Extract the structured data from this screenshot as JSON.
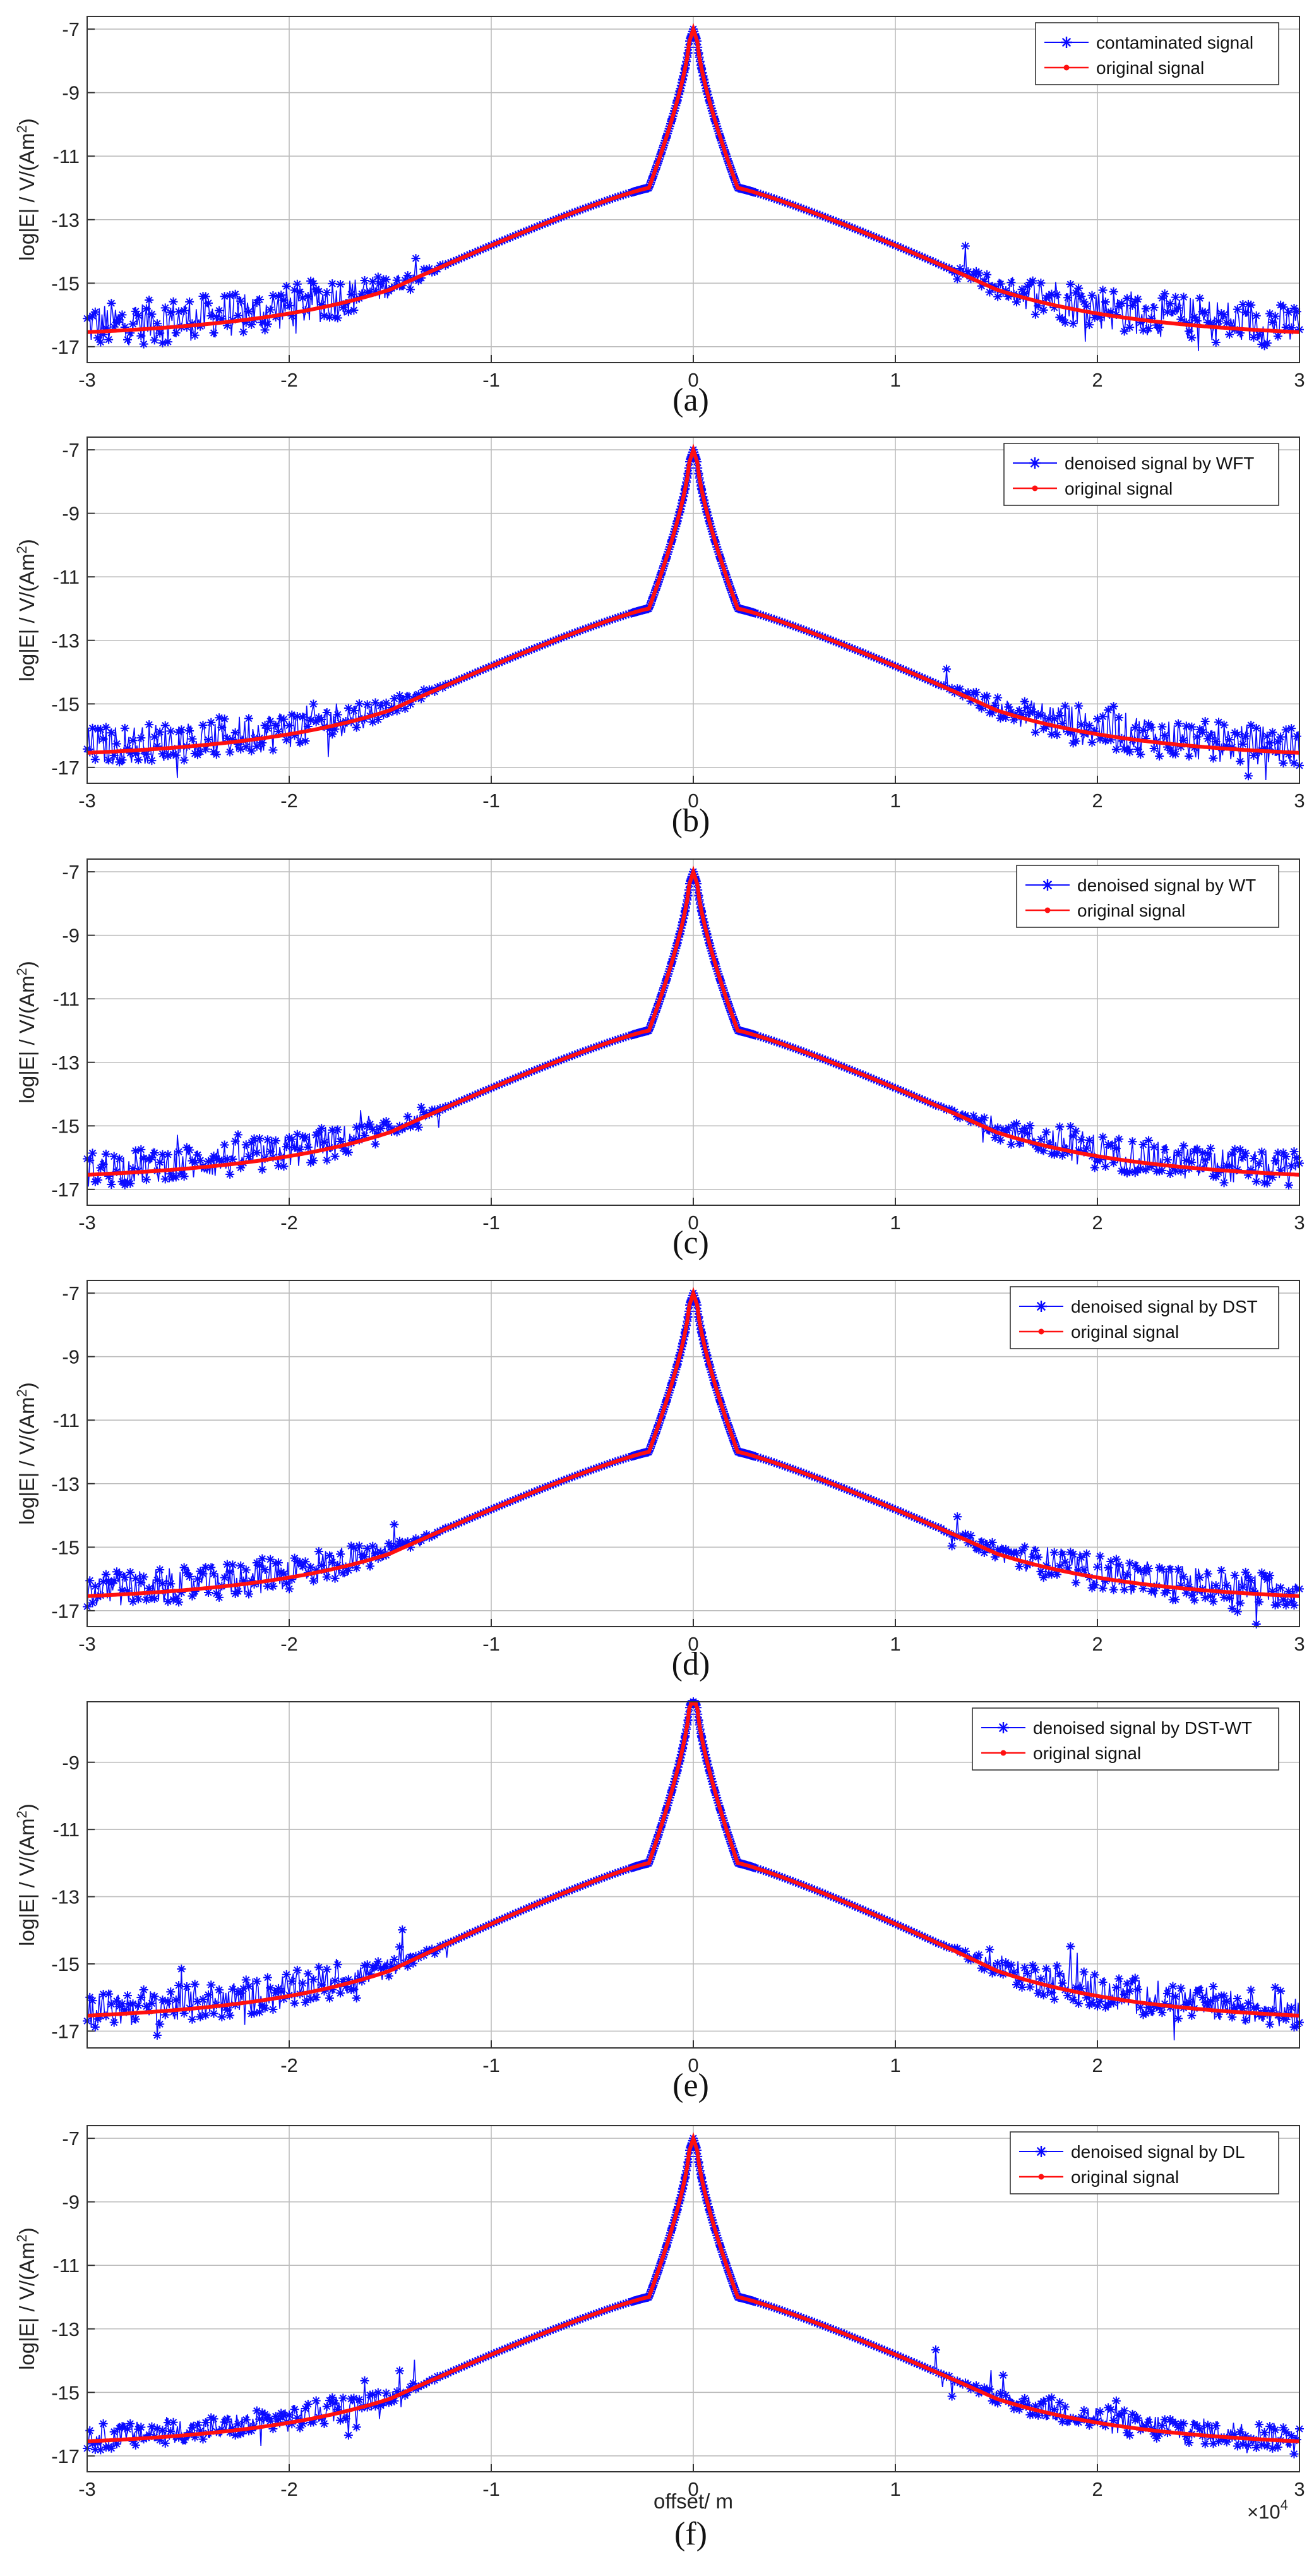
{
  "colors": {
    "contaminated": "#0a0aff",
    "original": "#ff1010",
    "grid": "#bdbdbd",
    "axis": "#333333"
  },
  "x_label": "offset/ m",
  "x_exponent_label": "×10",
  "x_exponent_power": "4",
  "y_label": "log|E| / V/(Am",
  "y_label_power": "2",
  "y_label_close": ")",
  "chart_data": [
    {
      "type": "line",
      "panel": "(a)",
      "caption": "(a)",
      "xlim": [
        -3,
        3
      ],
      "ylim": [
        -17.5,
        -6.6
      ],
      "x_ticks": [
        "-3",
        "-2",
        "-1",
        "0",
        "1",
        "2",
        "3"
      ],
      "y_ticks": [
        "-7",
        "-9",
        "-11",
        "-13",
        "-15",
        "-17"
      ],
      "legend": [
        "contaminated signal",
        "original signal"
      ],
      "noise": 1.0
    },
    {
      "type": "line",
      "panel": "(b)",
      "caption": "(b)",
      "xlim": [
        -3,
        3
      ],
      "ylim": [
        -17.5,
        -6.6
      ],
      "x_ticks": [
        "-3",
        "-2",
        "-1",
        "0",
        "1",
        "2",
        "3"
      ],
      "y_ticks": [
        "-7",
        "-9",
        "-11",
        "-13",
        "-15",
        "-17"
      ],
      "legend": [
        "denoised signal by WFT",
        "original signal"
      ],
      "noise": 0.9
    },
    {
      "type": "line",
      "panel": "(c)",
      "caption": "(c)",
      "xlim": [
        -3,
        3
      ],
      "ylim": [
        -17.5,
        -6.6
      ],
      "x_ticks": [
        "-3",
        "-2",
        "-1",
        "0",
        "1",
        "2",
        "3"
      ],
      "y_ticks": [
        "-7",
        "-9",
        "-11",
        "-13",
        "-15",
        "-17"
      ],
      "legend": [
        "denoised signal by WT",
        "original signal"
      ],
      "noise": 0.8
    },
    {
      "type": "line",
      "panel": "(d)",
      "caption": "(d)",
      "xlim": [
        -3,
        3
      ],
      "ylim": [
        -17.5,
        -6.6
      ],
      "x_ticks": [
        "-3",
        "-2",
        "-1",
        "0",
        "1",
        "2",
        "3"
      ],
      "y_ticks": [
        "-7",
        "-9",
        "-11",
        "-13",
        "-15",
        "-17"
      ],
      "legend": [
        "denoised signal by DST",
        "original signal"
      ],
      "noise": 0.8
    },
    {
      "type": "line",
      "panel": "(e)",
      "caption": "(e)",
      "xlim": [
        -3,
        3
      ],
      "ylim": [
        -17.5,
        -7.2
      ],
      "x_ticks": [
        "-2",
        "-1",
        "0",
        "1",
        "2"
      ],
      "y_ticks": [
        "-9",
        "-11",
        "-13",
        "-15",
        "-17"
      ],
      "legend": [
        "denoised signal by DST-WT",
        "original signal"
      ],
      "noise": 0.8
    },
    {
      "type": "line",
      "panel": "(f)",
      "caption": "(f)",
      "xlim": [
        -3,
        3
      ],
      "ylim": [
        -17.5,
        -6.6
      ],
      "x_ticks": [
        "-3",
        "-2",
        "-1",
        "0",
        "1",
        "2",
        "3"
      ],
      "y_ticks": [
        "-7",
        "-9",
        "-11",
        "-13",
        "-15",
        "-17"
      ],
      "legend": [
        "denoised signal by DL",
        "original signal"
      ],
      "noise": 0.6
    }
  ]
}
